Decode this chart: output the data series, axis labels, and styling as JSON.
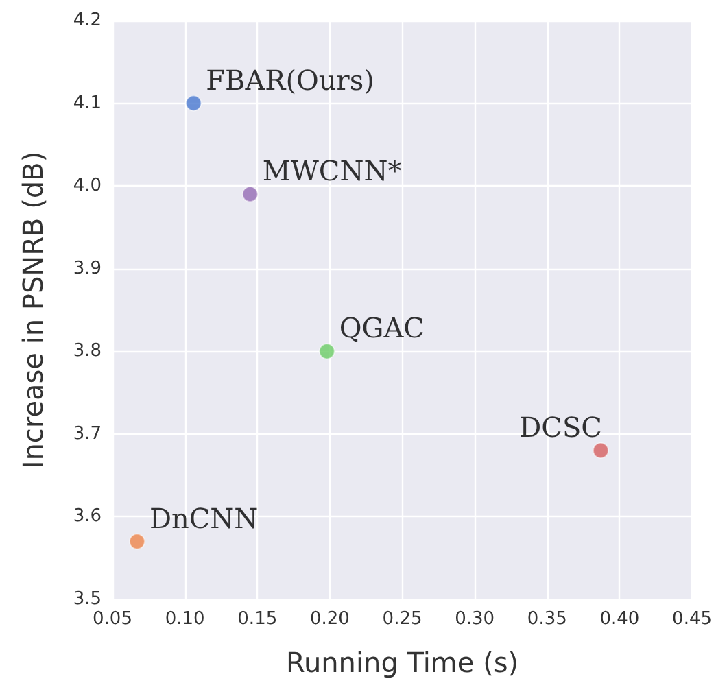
{
  "chart_data": {
    "type": "scatter",
    "xlabel": "Running Time (s)",
    "ylabel": "Increase in PSNRB (dB)",
    "series": [
      {
        "name": "FBAR(Ours)",
        "color": "#4878d0",
        "x": [
          0.106
        ],
        "values": [
          4.1
        ]
      },
      {
        "name": "MWCNN*",
        "color": "#956cb4",
        "x": [
          0.145
        ],
        "values": [
          3.99
        ]
      },
      {
        "name": "QGAC",
        "color": "#6acc64",
        "x": [
          0.198
        ],
        "values": [
          3.8
        ]
      },
      {
        "name": "DCSC",
        "color": "#d65f5f",
        "x": [
          0.387
        ],
        "values": [
          3.68
        ]
      },
      {
        "name": "DnCNN",
        "color": "#ee854a",
        "x": [
          0.067
        ],
        "values": [
          3.57
        ]
      }
    ],
    "xlim": [
      0.05,
      0.45
    ],
    "xticks": [
      0.05,
      {
        "value": 0.1,
        "label": "0.10"
      },
      0.15,
      {
        "value": 0.2,
        "label": "0.20"
      },
      0.25,
      {
        "value": 0.3,
        "label": "0.30"
      },
      0.35,
      {
        "value": 0.4,
        "label": "0.40"
      },
      0.45
    ],
    "ylim": [
      3.5,
      4.2
    ],
    "yticks": [
      3.5,
      3.6,
      3.7,
      3.8,
      3.9,
      {
        "value": 4,
        "label": "4.0"
      },
      4.1,
      4.2
    ],
    "grid": true,
    "legend": false,
    "marker": "circle"
  }
}
